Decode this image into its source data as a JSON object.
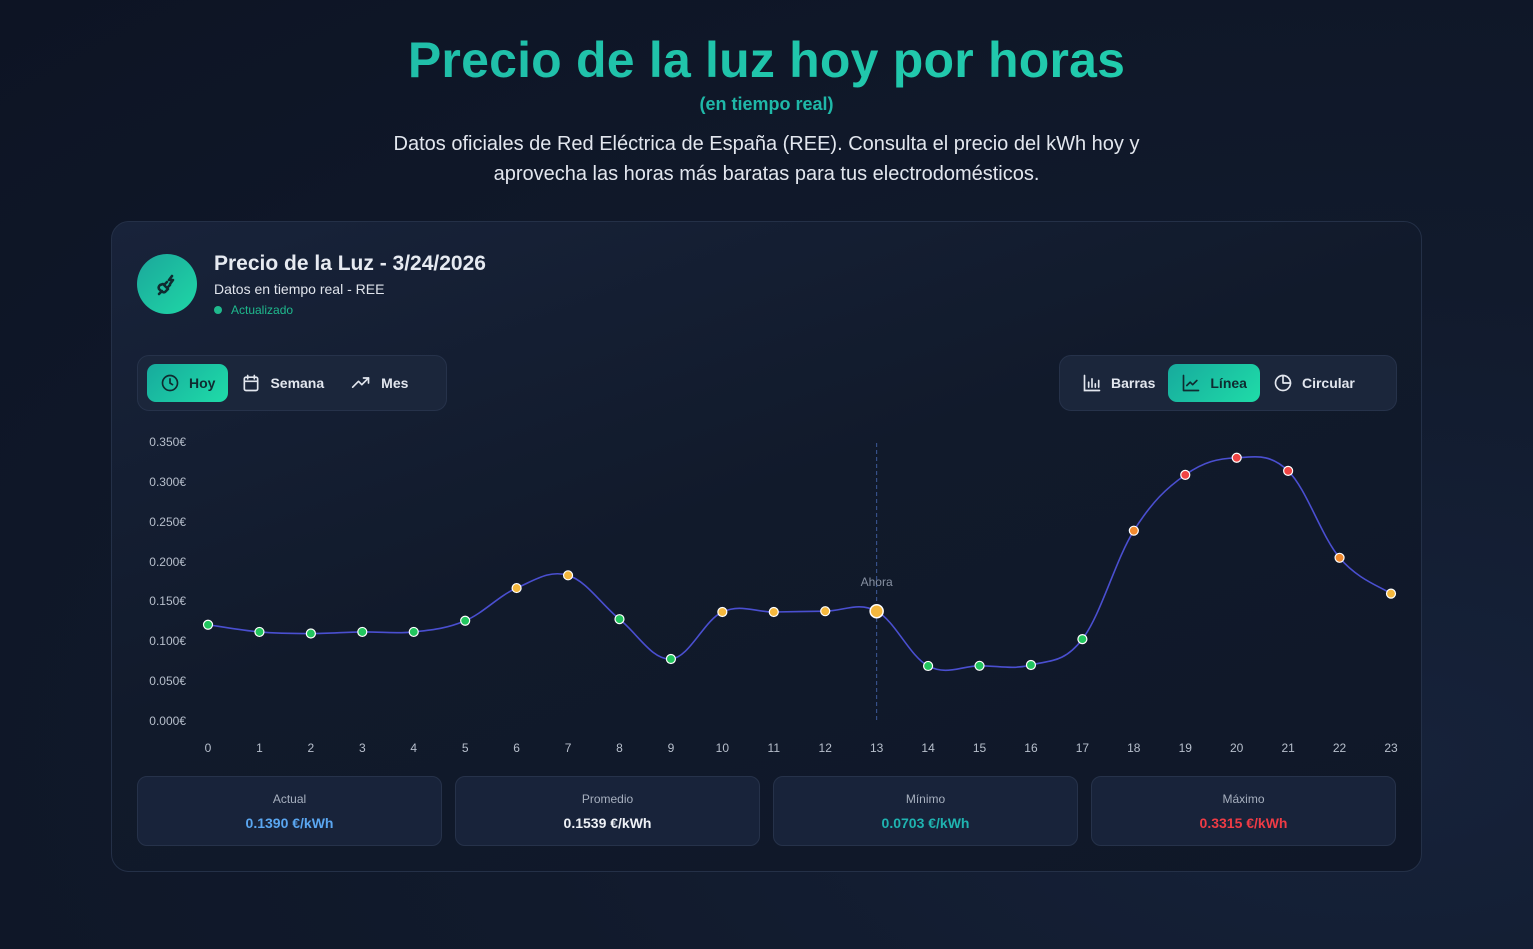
{
  "hero": {
    "title": "Precio de la luz hoy por horas",
    "subtitle": "(en tiempo real)",
    "description": "Datos oficiales de Red Eléctrica de España (REE). Consulta el precio del kWh hoy y aprovecha las horas más baratas para tus electrodomésticos."
  },
  "card": {
    "icon": "plug-bolt-icon",
    "title": "Precio de la Luz - 3/24/2026",
    "subtitle": "Datos en tiempo real - REE",
    "status": "Actualizado"
  },
  "period_tabs": [
    {
      "label": "Hoy",
      "icon": "clock-icon",
      "active": true
    },
    {
      "label": "Semana",
      "icon": "calendar-icon",
      "active": false
    },
    {
      "label": "Mes",
      "icon": "trending-up-icon",
      "active": false
    }
  ],
  "chart_type_tabs": [
    {
      "label": "Barras",
      "icon": "bar-chart-icon",
      "active": false
    },
    {
      "label": "Línea",
      "icon": "line-chart-icon",
      "active": true
    },
    {
      "label": "Circular",
      "icon": "pie-chart-icon",
      "active": false
    }
  ],
  "colors": {
    "accent": "#1fc9a8",
    "line": "#4a4fd0",
    "cheap": "#22c55e",
    "medium": "#f5b83d",
    "high": "#f28a2e",
    "expensive": "#ef4444",
    "actual": "#5aa6f0",
    "minimo": "#1fb3b0",
    "maximo": "#ef3b45"
  },
  "chart_data": {
    "type": "line",
    "title": "Precio de la Luz - 3/24/2026",
    "xlabel": "",
    "ylabel": "€/kWh",
    "x": [
      0,
      1,
      2,
      3,
      4,
      5,
      6,
      7,
      8,
      9,
      10,
      11,
      12,
      13,
      14,
      15,
      16,
      17,
      18,
      19,
      20,
      21,
      22,
      23
    ],
    "values": [
      0.122,
      0.113,
      0.111,
      0.113,
      0.113,
      0.127,
      0.168,
      0.184,
      0.129,
      0.079,
      0.138,
      0.138,
      0.139,
      0.139,
      0.0703,
      0.0705,
      0.0715,
      0.104,
      0.24,
      0.31,
      0.3315,
      0.315,
      0.206,
      0.161
    ],
    "point_levels": [
      "cheap",
      "cheap",
      "cheap",
      "cheap",
      "cheap",
      "cheap",
      "medium",
      "medium",
      "cheap",
      "cheap",
      "medium",
      "medium",
      "medium",
      "medium",
      "cheap",
      "cheap",
      "cheap",
      "cheap",
      "high",
      "expensive",
      "expensive",
      "expensive",
      "high",
      "medium"
    ],
    "ylim": [
      0,
      0.35
    ],
    "yticks": [
      "0.000€",
      "0.050€",
      "0.100€",
      "0.150€",
      "0.200€",
      "0.250€",
      "0.300€",
      "0.350€"
    ],
    "grid": false,
    "current_hour": 13,
    "current_label": "Ahora",
    "legend": "none"
  },
  "stats": [
    {
      "label": "Actual",
      "value": "0.1390 €/kWh",
      "color": "#5aa6f0"
    },
    {
      "label": "Promedio",
      "value": "0.1539 €/kWh",
      "color": "#eef1f6"
    },
    {
      "label": "Mínimo",
      "value": "0.0703 €/kWh",
      "color": "#1fb3b0"
    },
    {
      "label": "Máximo",
      "value": "0.3315 €/kWh",
      "color": "#ef3b45"
    }
  ]
}
